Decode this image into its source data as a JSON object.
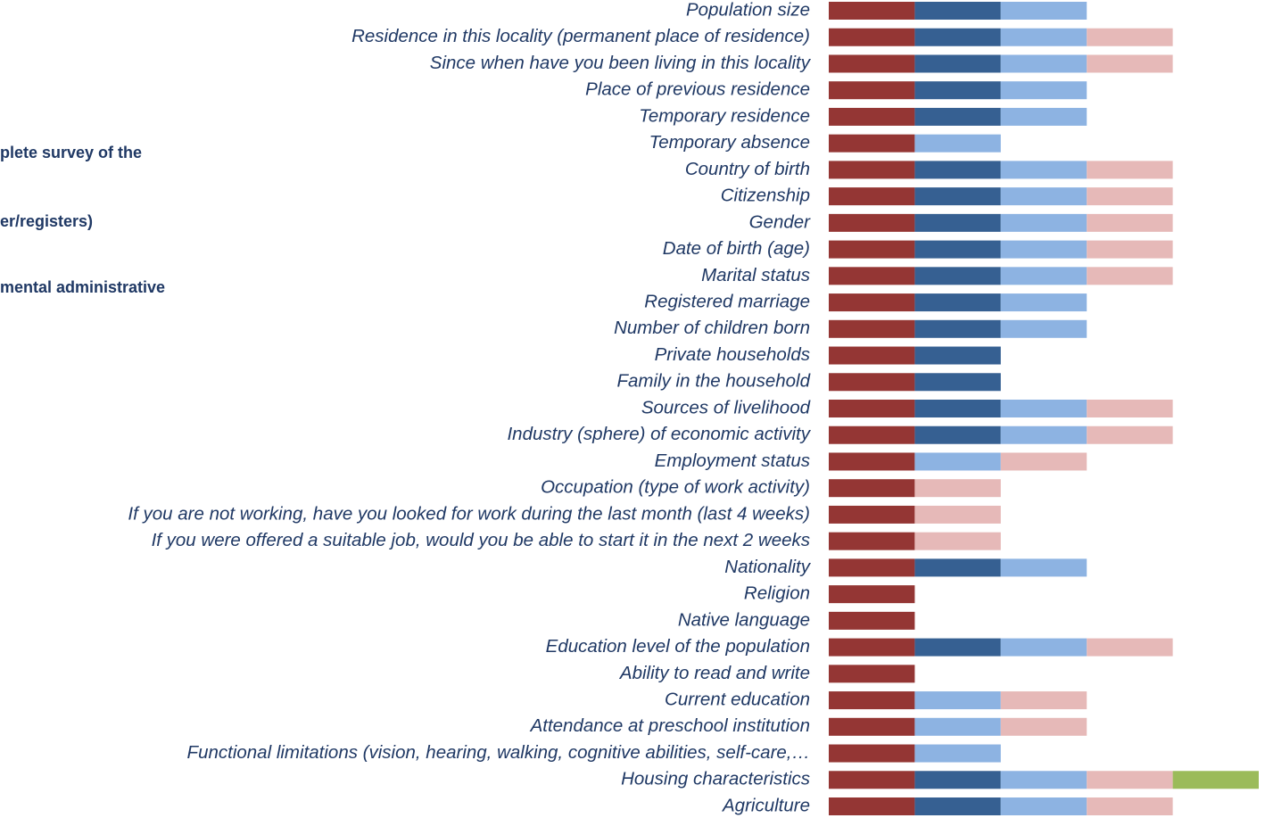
{
  "chart_data": {
    "type": "stacked_bar_horizontal",
    "legend_fragments": [
      "plete survey of the",
      "er/registers)",
      "mental administrative"
    ],
    "categories": [
      "Population size",
      "Residence in this locality (permanent place of residence)",
      "Since when have you been living in this locality",
      "Place of previous residence",
      "Temporary residence",
      "Temporary absence",
      "Country of birth",
      "Citizenship",
      "Gender",
      "Date of birth (age)",
      "Marital status",
      "Registered marriage",
      "Number of children born",
      "Private households",
      "Family in the household",
      "Sources of livelihood",
      "Industry (sphere) of economic activity",
      "Employment status",
      "Occupation (type of work activity)",
      "If you are not working, have you looked for work during the last month (last 4 weeks)",
      "If you were offered a suitable job, would you be able to start it in the next 2 weeks",
      "Nationality",
      "Religion",
      "Native language",
      "Education level of the population",
      "Ability to read and write",
      "Current education",
      "Attendance at preschool institution",
      "Functional limitations (vision, hearing, walking, cognitive abilities, self-care,…",
      "Housing characteristics",
      "Agriculture"
    ],
    "series": [
      {
        "color": "#943634",
        "values": [
          1,
          1,
          1,
          1,
          1,
          1,
          1,
          1,
          1,
          1,
          1,
          1,
          1,
          1,
          1,
          1,
          1,
          1,
          1,
          1,
          1,
          1,
          1,
          1,
          1,
          1,
          1,
          1,
          1,
          1,
          1
        ]
      },
      {
        "color": "#366092",
        "values": [
          1,
          1,
          1,
          1,
          1,
          0,
          1,
          1,
          1,
          1,
          1,
          1,
          1,
          1,
          1,
          1,
          1,
          0,
          0,
          0,
          0,
          1,
          0,
          0,
          1,
          0,
          0,
          0,
          0,
          1,
          1
        ]
      },
      {
        "color": "#8db3e2",
        "values": [
          1,
          1,
          1,
          1,
          1,
          1,
          1,
          1,
          1,
          1,
          1,
          1,
          1,
          0,
          0,
          1,
          1,
          1,
          0,
          0,
          0,
          1,
          0,
          0,
          1,
          0,
          1,
          1,
          1,
          1,
          1
        ]
      },
      {
        "color": "#e6b9b8",
        "values": [
          0,
          1,
          1,
          0,
          0,
          0,
          1,
          1,
          1,
          1,
          1,
          0,
          0,
          0,
          0,
          1,
          1,
          1,
          1,
          1,
          1,
          0,
          0,
          0,
          1,
          0,
          1,
          1,
          0,
          1,
          1
        ]
      },
      {
        "color": "#9bbb59",
        "values": [
          0,
          0,
          0,
          0,
          0,
          0,
          0,
          0,
          0,
          0,
          0,
          0,
          0,
          0,
          0,
          0,
          0,
          0,
          0,
          0,
          0,
          0,
          0,
          0,
          0,
          0,
          0,
          0,
          0,
          1,
          0
        ]
      }
    ],
    "xlim": [
      0,
      5
    ]
  }
}
